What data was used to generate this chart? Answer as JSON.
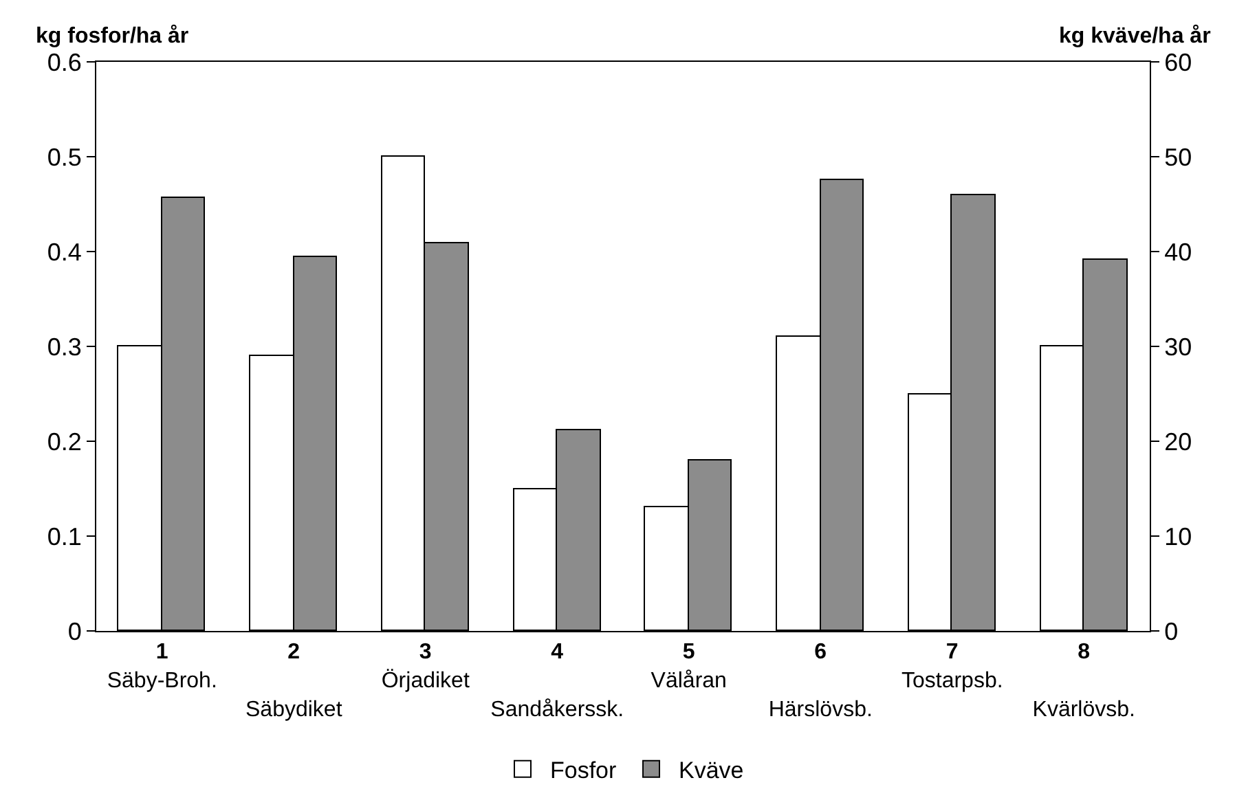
{
  "chart_data": {
    "type": "bar",
    "categories": [
      "1\nSäby-Broh.",
      "2\nSäbydiket",
      "3\nÖrjadiket",
      "4\nSandåkerssk.",
      "5\nVälåran",
      "6\nHärslövsb.",
      "7\nTostarpsb.",
      "8\nKvärlövsb."
    ],
    "series": [
      {
        "name": "Fosfor",
        "color": "#ffffff",
        "values": [
          0.3,
          0.29,
          0.5,
          0.15,
          0.13,
          0.31,
          0.25,
          0.3
        ]
      },
      {
        "name": "Kväve",
        "color": "#8c8c8c",
        "axis": "y2",
        "values": [
          45.6,
          39.4,
          40.9,
          21.2,
          17.9,
          47.5,
          45.9,
          39.2
        ]
      }
    ],
    "ylabel": "kg fosfor/ha år",
    "y2label": "kg kväve/ha år",
    "ylim": [
      0,
      0.6
    ],
    "yticks": [
      0,
      0.1,
      0.2,
      0.3,
      0.4,
      0.5,
      0.6
    ],
    "y2lim": [
      0,
      60
    ],
    "y2ticks": [
      0,
      10,
      20,
      30,
      40,
      50,
      60
    ],
    "legend": "bottom"
  }
}
